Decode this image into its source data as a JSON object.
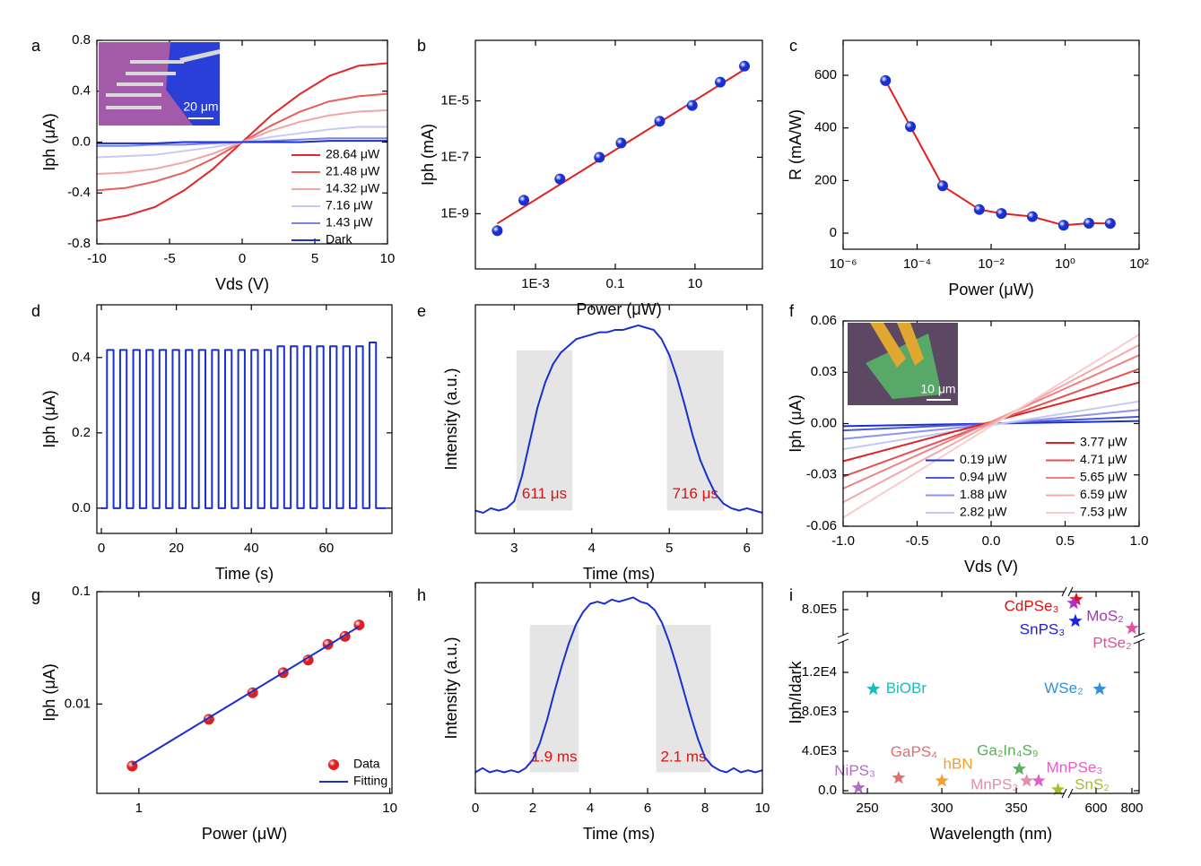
{
  "chart_data": [
    {
      "type": "line",
      "panel": "a",
      "x_label": "Vds (V)",
      "y_label": "Iph (μA)",
      "xlim": [
        -10,
        10
      ],
      "xticks": [
        -10,
        -5,
        0,
        5,
        10
      ],
      "ylim": [
        -0.8,
        0.8
      ],
      "yticks": [
        -0.8,
        -0.4,
        {
          "value": 0,
          "label": "0.0"
        },
        0.4,
        0.8
      ],
      "x": [
        -10,
        -8,
        -6,
        -4,
        -2,
        0,
        2,
        4,
        6,
        8,
        10
      ],
      "series": [
        {
          "name": "28.64 μW",
          "color": "#e02828",
          "values": [
            -0.62,
            -0.58,
            -0.51,
            -0.38,
            -0.21,
            0,
            0.21,
            0.38,
            0.52,
            0.6,
            0.62
          ]
        },
        {
          "name": "21.48 μW",
          "color": "#e85c5c",
          "values": [
            -0.38,
            -0.36,
            -0.31,
            -0.24,
            -0.13,
            0,
            0.13,
            0.24,
            0.32,
            0.36,
            0.38
          ]
        },
        {
          "name": "14.32 μW",
          "color": "#f2a4a4",
          "values": [
            -0.25,
            -0.24,
            -0.21,
            -0.16,
            -0.09,
            0,
            0.09,
            0.16,
            0.21,
            0.24,
            0.25
          ]
        },
        {
          "name": "7.16 μW",
          "color": "#c8c8f2",
          "values": [
            -0.12,
            -0.11,
            -0.1,
            -0.07,
            -0.04,
            0,
            0.04,
            0.07,
            0.1,
            0.12,
            0.12
          ]
        },
        {
          "name": "1.43 μW",
          "color": "#7a82e4",
          "values": [
            -0.03,
            -0.03,
            -0.02,
            -0.02,
            -0.01,
            0,
            0.01,
            0.02,
            0.03,
            0.03,
            0.03
          ]
        },
        {
          "name": "Dark",
          "color": "#1a2fd0",
          "values": [
            -0.01,
            -0.01,
            -0.01,
            0,
            0,
            0,
            0,
            0,
            0.01,
            0.01,
            0.01
          ]
        }
      ],
      "legend": "lower right",
      "inset": {
        "scale_label": "20 μm"
      }
    },
    {
      "type": "scatter",
      "panel": "b",
      "x_label": "Power (μW)",
      "y_label": "Iph (mA)",
      "xscale": "log",
      "yscale": "log",
      "xlim": [
        3.1e-05,
        490
      ],
      "xticks": [
        {
          "value": 0.001,
          "label": "1E-3"
        },
        0.1,
        10
      ],
      "ylim": [
        1.1e-11,
        0.0014
      ],
      "yticks": [
        {
          "value": 1e-09,
          "label": "1E-9"
        },
        {
          "value": 1e-07,
          "label": "1E-7"
        },
        {
          "value": 1e-05,
          "label": "1E-5"
        }
      ],
      "series": [
        {
          "color": "#e02020",
          "x": [
            0.00011,
            174
          ],
          "values": [
            4.5e-10,
            0.00013
          ]
        },
        {
          "marker_color": "#1a2fd0",
          "x": [
            0.00011,
            0.00051,
            0.0041,
            0.04,
            0.14,
            1.3,
            8.5,
            43,
            174
          ],
          "values": [
            2.5e-10,
            3e-09,
            1.7e-08,
            1e-07,
            3.2e-07,
            1.9e-06,
            6.9e-06,
            4.6e-05,
            0.00017
          ]
        }
      ]
    },
    {
      "type": "line",
      "panel": "c",
      "x_label": "Power (μW)",
      "y_label": "R (mA/W)",
      "xscale": "log",
      "xlim": [
        1e-06,
        100
      ],
      "xticks": [
        {
          "value": 1e-06,
          "label": "10⁻⁶"
        },
        {
          "value": 0.0001,
          "label": "10⁻⁴"
        },
        {
          "value": 0.01,
          "label": "10⁻²"
        },
        {
          "value": 1,
          "label": "10⁰"
        },
        {
          "value": 100,
          "label": "10²"
        }
      ],
      "ylim": [
        -61,
        733
      ],
      "yticks": [
        0,
        200,
        400,
        600
      ],
      "series": [
        {
          "color": "#e02020",
          "marker_color": "#1a2fd0",
          "x": [
            1.4e-05,
            6.6e-05,
            0.00049,
            0.0048,
            0.019,
            0.13,
            0.91,
            4.4,
            16.6
          ],
          "values": [
            580,
            405,
            180,
            90,
            75,
            63,
            30,
            38,
            37
          ]
        }
      ]
    },
    {
      "type": "line",
      "panel": "d",
      "x_label": "Time (s)",
      "y_label": "Iph (μA)",
      "xlim": [
        -1.2,
        77.5
      ],
      "xticks": [
        0,
        20,
        40,
        60
      ],
      "ylim": [
        -0.067,
        0.54
      ],
      "yticks": [
        {
          "value": 0,
          "label": "0.0"
        },
        0.2,
        0.4
      ],
      "x": [
        0,
        1.5,
        1.5,
        3.25,
        3.25,
        5,
        5,
        6.75,
        6.75,
        8.5,
        8.5,
        10.25,
        10.25,
        12,
        12,
        13.75,
        13.75,
        15.5,
        15.5,
        17.25,
        17.25,
        19,
        19,
        20.75,
        20.75,
        22.5,
        22.5,
        24.25,
        24.25,
        26,
        26,
        27.75,
        27.75,
        29.5,
        29.5,
        31.25,
        31.25,
        33,
        33,
        34.75,
        34.75,
        36.5,
        36.5,
        38.25,
        38.25,
        40,
        40,
        41.75,
        41.75,
        43.5,
        43.5,
        45.25,
        45.25,
        47,
        47,
        48.75,
        48.75,
        50.5,
        50.5,
        52.25,
        52.25,
        54,
        54,
        55.75,
        55.75,
        57.5,
        57.5,
        59.25,
        59.25,
        61,
        61,
        62.75,
        62.75,
        64.5,
        64.5,
        66.25,
        66.25,
        68,
        68,
        69.75,
        69.75,
        71.5,
        71.5,
        73.25,
        73.25,
        76
      ],
      "series": [
        {
          "color": "#1a2fd0",
          "values": [
            0,
            0,
            0.42,
            0.42,
            0,
            0,
            0.42,
            0.42,
            0,
            0,
            0.42,
            0.42,
            0,
            0,
            0.42,
            0.42,
            0,
            0,
            0.42,
            0.42,
            0,
            0,
            0.42,
            0.42,
            0,
            0,
            0.42,
            0.42,
            0,
            0,
            0.42,
            0.42,
            0,
            0,
            0.42,
            0.42,
            0,
            0,
            0.42,
            0.42,
            0,
            0,
            0.42,
            0.42,
            0,
            0,
            0.42,
            0.42,
            0,
            0,
            0.42,
            0.42,
            0,
            0,
            0.43,
            0.43,
            0,
            0,
            0.43,
            0.43,
            0,
            0,
            0.43,
            0.43,
            0,
            0,
            0.43,
            0.43,
            0,
            0,
            0.43,
            0.43,
            0,
            0,
            0.43,
            0.43,
            0,
            0,
            0.43,
            0.43,
            0,
            0,
            0.44,
            0.44,
            0,
            0
          ]
        }
      ]
    },
    {
      "type": "line",
      "panel": "e",
      "x_label": "Time (ms)",
      "y_label": "Intensity (a.u.)",
      "xlim": [
        2.5,
        6.2
      ],
      "xticks": [
        3,
        4,
        5,
        6
      ],
      "ylim": [
        0,
        1
      ],
      "x": [
        2.5,
        2.6,
        2.7,
        2.8,
        2.9,
        3.0,
        3.1,
        3.2,
        3.3,
        3.4,
        3.5,
        3.6,
        3.7,
        3.8,
        3.9,
        4.0,
        4.1,
        4.2,
        4.3,
        4.4,
        4.5,
        4.6,
        4.7,
        4.8,
        4.9,
        5.0,
        5.1,
        5.2,
        5.3,
        5.4,
        5.5,
        5.6,
        5.7,
        5.8,
        5.9,
        6.0,
        6.1,
        6.2
      ],
      "series": [
        {
          "color": "#1a2fd0",
          "values": [
            0.1,
            0.09,
            0.11,
            0.1,
            0.11,
            0.14,
            0.25,
            0.4,
            0.55,
            0.66,
            0.74,
            0.79,
            0.82,
            0.85,
            0.86,
            0.87,
            0.88,
            0.88,
            0.89,
            0.89,
            0.9,
            0.91,
            0.9,
            0.89,
            0.85,
            0.78,
            0.68,
            0.56,
            0.43,
            0.32,
            0.24,
            0.17,
            0.13,
            0.11,
            0.1,
            0.11,
            0.1,
            0.09
          ]
        }
      ],
      "shaded": [
        {
          "range": [
            3.03,
            3.75
          ],
          "label": "611 μs"
        },
        {
          "range": [
            4.97,
            5.7
          ],
          "label": "716 μs"
        }
      ]
    },
    {
      "type": "line",
      "panel": "f",
      "x_label": "Vds (V)",
      "y_label": "Iph (μA)",
      "xlim": [
        -1,
        1
      ],
      "xticks": [
        {
          "value": -1,
          "label": "-1.0"
        },
        -0.5,
        {
          "value": 0,
          "label": "0.0"
        },
        0.5,
        {
          "value": 1,
          "label": "1.0"
        }
      ],
      "ylim": [
        -0.06,
        0.06
      ],
      "yticks": [
        -0.06,
        -0.03,
        {
          "value": 0,
          "label": "0.00"
        },
        0.03,
        0.06
      ],
      "x": [
        -1,
        1
      ],
      "series": [
        {
          "name": "0.19 μW",
          "color": "#1a2fd0",
          "values": [
            -0.0015,
            0.0015
          ]
        },
        {
          "name": "0.94 μW",
          "color": "#4a58e2",
          "values": [
            -0.004,
            0.004
          ]
        },
        {
          "name": "1.88 μW",
          "color": "#8c92ee",
          "values": [
            -0.009,
            0.008
          ]
        },
        {
          "name": "2.82 μW",
          "color": "#c6c8f4",
          "values": [
            -0.015,
            0.013
          ]
        },
        {
          "name": "3.77 μW",
          "color": "#e41e1e",
          "values": [
            -0.022,
            0.024
          ]
        },
        {
          "name": "4.71 μW",
          "color": "#ea5050",
          "values": [
            -0.031,
            0.032
          ]
        },
        {
          "name": "5.65 μW",
          "color": "#f08080",
          "values": [
            -0.038,
            0.04
          ]
        },
        {
          "name": "6.59 μW",
          "color": "#f4a8a8",
          "values": [
            -0.046,
            0.046
          ]
        },
        {
          "name": "7.53 μW",
          "color": "#f8cccc",
          "values": [
            -0.055,
            0.052
          ]
        }
      ],
      "legend": "lower right",
      "inset": {
        "scale_label": "10 μm"
      }
    },
    {
      "type": "scatter",
      "panel": "g",
      "x_label": "Power (μW)",
      "y_label": "Iph (μA)",
      "xscale": "log",
      "yscale": "log",
      "xlim": [
        0.68,
        10.2
      ],
      "xticks": [
        1,
        10
      ],
      "ylim": [
        0.0016,
        0.1
      ],
      "yticks": [
        0.01,
        0.1
      ],
      "series": [
        {
          "name": "Data",
          "marker_color": "#e02020",
          "x": [
            0.94,
            1.9,
            2.84,
            3.76,
            4.73,
            5.67,
            6.63,
            7.55
          ],
          "values": [
            0.0028,
            0.0073,
            0.0126,
            0.019,
            0.0246,
            0.034,
            0.04,
            0.0506
          ]
        },
        {
          "name": "Fitting",
          "color": "#1a2fd0",
          "x": [
            0.94,
            7.55
          ],
          "values": [
            0.0029,
            0.049
          ]
        }
      ],
      "legend": "lower right"
    },
    {
      "type": "line",
      "panel": "h",
      "x_label": "Time (ms)",
      "y_label": "Intensity (a.u.)",
      "xlim": [
        0,
        10
      ],
      "xticks": [
        0,
        2,
        4,
        6,
        8,
        10
      ],
      "ylim": [
        0,
        1
      ],
      "x": [
        0,
        0.25,
        0.5,
        0.75,
        1,
        1.25,
        1.5,
        1.75,
        2,
        2.25,
        2.5,
        2.75,
        3,
        3.25,
        3.5,
        3.75,
        4,
        4.25,
        4.5,
        4.75,
        5,
        5.25,
        5.5,
        5.75,
        6,
        6.25,
        6.5,
        6.75,
        7,
        7.25,
        7.5,
        7.75,
        8,
        8.25,
        8.5,
        8.75,
        9,
        9.25,
        9.5,
        9.75,
        10
      ],
      "series": [
        {
          "color": "#1a2fd0",
          "values": [
            0.1,
            0.12,
            0.1,
            0.11,
            0.1,
            0.11,
            0.1,
            0.12,
            0.16,
            0.24,
            0.35,
            0.48,
            0.6,
            0.71,
            0.8,
            0.86,
            0.9,
            0.91,
            0.9,
            0.92,
            0.91,
            0.92,
            0.93,
            0.91,
            0.9,
            0.87,
            0.81,
            0.72,
            0.61,
            0.49,
            0.37,
            0.26,
            0.17,
            0.13,
            0.11,
            0.1,
            0.12,
            0.1,
            0.11,
            0.1,
            0.11
          ]
        }
      ],
      "shaded": [
        {
          "range": [
            1.9,
            3.6
          ],
          "label": "1.9 ms"
        },
        {
          "range": [
            6.3,
            8.2
          ],
          "label": "2.1 ms"
        }
      ]
    },
    {
      "type": "scatter",
      "panel": "i",
      "marker": "star",
      "x_label": "Wavelength (nm)",
      "y_label": "Iph/Idark",
      "xlim": [
        [
          233.7,
          384.3
        ],
        [
          440,
          840
        ]
      ],
      "xticks": [
        250,
        300,
        350,
        600,
        800
      ],
      "ylim": [
        [
          -273,
          15455
        ],
        [
          720000,
          850000
        ]
      ],
      "yticks": [
        {
          "value": 0,
          "label": "0.0"
        },
        {
          "value": 4000,
          "label": "4.0E3"
        },
        {
          "value": 8000,
          "label": "8.0E3"
        },
        {
          "value": 12000,
          "label": "1.2E4"
        },
        {
          "value": 800000,
          "label": "8.0E5"
        }
      ],
      "series": [
        {
          "name": "BiOBr",
          "color": "#1cbcbc",
          "x": [
            254
          ],
          "values": [
            10300
          ]
        },
        {
          "name": "NiPS₃",
          "color": "#b070c0",
          "x": [
            244
          ],
          "values": [
            300
          ]
        },
        {
          "name": "GaPS₄",
          "color": "#e07070",
          "x": [
            271
          ],
          "values": [
            1300
          ]
        },
        {
          "name": "hBN",
          "color": "#f0a030",
          "x": [
            300
          ],
          "values": [
            1000
          ]
        },
        {
          "name": "Ga₂In₄S₉",
          "color": "#58b058",
          "x": [
            352
          ],
          "values": [
            2200
          ]
        },
        {
          "name": "MnPS₃",
          "color": "#e090a8",
          "x": [
            357
          ],
          "values": [
            1000
          ]
        },
        {
          "name": "MnPSe₃",
          "color": "#e060c8",
          "x": [
            365
          ],
          "values": [
            1000
          ]
        },
        {
          "name": "SnS₂",
          "color": "#a0c030",
          "x": [
            378
          ],
          "values": [
            100
          ]
        },
        {
          "name": "CdPSe₃",
          "color": "#e01010",
          "x": [
            490
          ],
          "values": [
            828000
          ]
        },
        {
          "name": "MoS₂",
          "color": "#b030c0",
          "x": [
            475
          ],
          "values": [
            818000
          ]
        },
        {
          "name": "SnPS₃",
          "color": "#2020e0",
          "x": [
            485
          ],
          "values": [
            768000
          ]
        },
        {
          "name": "PtSe₂",
          "color": "#e050a0",
          "x": [
            800
          ],
          "values": [
            748000
          ]
        },
        {
          "name": "WSe₂",
          "color": "#3090e0",
          "x": [
            620
          ],
          "values": [
            10300
          ]
        }
      ]
    }
  ]
}
